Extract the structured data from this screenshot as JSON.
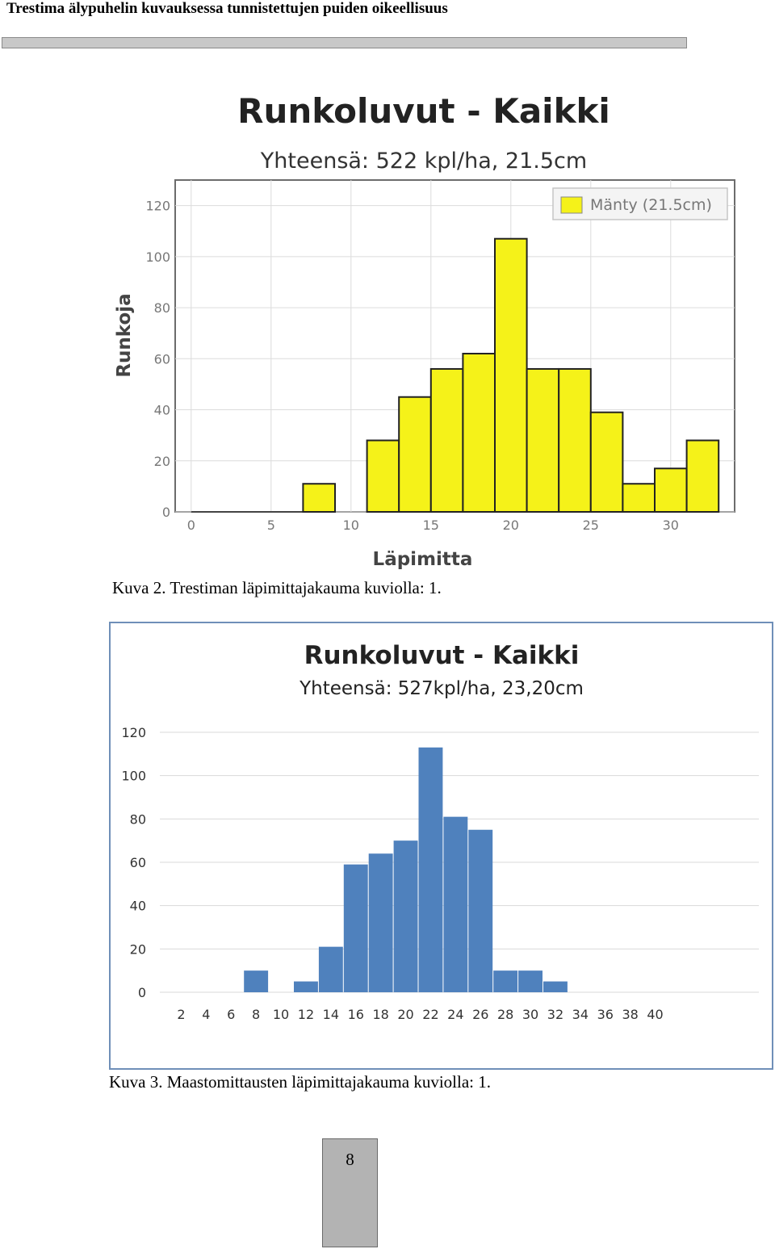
{
  "header": {
    "title": "Trestima älypuhelin kuvauksessa tunnistettujen puiden oikeellisuus"
  },
  "figures": [
    {
      "caption": "Kuva 2. Trestiman läpimittajakauma kuviolla: 1."
    },
    {
      "caption": "Kuva 3. Maastomittausten läpimittajakauma kuviolla: 1."
    }
  ],
  "footer": {
    "page_number": "8"
  },
  "chart_data": [
    {
      "type": "bar",
      "title": "Runkoluvut - Kaikki",
      "subtitle": "Yhteensä: 522 kpl/ha, 21.5cm",
      "xlabel": "Läpimitta",
      "ylabel": "Runkoja",
      "xlim": [
        -1,
        34
      ],
      "ylim": [
        0,
        130
      ],
      "x_ticks": [
        0,
        5,
        10,
        15,
        20,
        25,
        30
      ],
      "y_ticks": [
        0,
        20,
        40,
        60,
        80,
        100,
        120
      ],
      "grid": true,
      "legend_position": "top-right",
      "bar_color": "#f5f219",
      "bar_edge_color": "#222222",
      "series": [
        {
          "name": "Mänty (21.5cm)",
          "bins": [
            {
              "from": 7,
              "to": 9,
              "value": 11
            },
            {
              "from": 11,
              "to": 13,
              "value": 28
            },
            {
              "from": 13,
              "to": 15,
              "value": 45
            },
            {
              "from": 15,
              "to": 17,
              "value": 56
            },
            {
              "from": 17,
              "to": 19,
              "value": 62
            },
            {
              "from": 19,
              "to": 21,
              "value": 107
            },
            {
              "from": 21,
              "to": 23,
              "value": 56
            },
            {
              "from": 23,
              "to": 25,
              "value": 56
            },
            {
              "from": 25,
              "to": 27,
              "value": 39
            },
            {
              "from": 27,
              "to": 29,
              "value": 11
            },
            {
              "from": 29,
              "to": 31,
              "value": 17
            },
            {
              "from": 31,
              "to": 33,
              "value": 28
            }
          ]
        }
      ]
    },
    {
      "type": "bar",
      "title": "Runkoluvut - Kaikki",
      "subtitle": "Yhteensä: 527kpl/ha, 23,20cm",
      "xlabel": "",
      "ylabel": "",
      "categories": [
        "2",
        "4",
        "6",
        "8",
        "10",
        "12",
        "14",
        "16",
        "18",
        "20",
        "22",
        "24",
        "26",
        "28",
        "30",
        "32",
        "34",
        "36",
        "38",
        "40"
      ],
      "values": [
        0,
        0,
        0,
        10,
        0,
        5,
        21,
        59,
        64,
        70,
        113,
        81,
        75,
        10,
        10,
        5,
        0,
        0,
        0,
        0
      ],
      "ylim": [
        0,
        120
      ],
      "y_ticks": [
        0,
        20,
        40,
        60,
        80,
        100,
        120
      ],
      "grid": true,
      "bar_color": "#4f81bd"
    }
  ]
}
